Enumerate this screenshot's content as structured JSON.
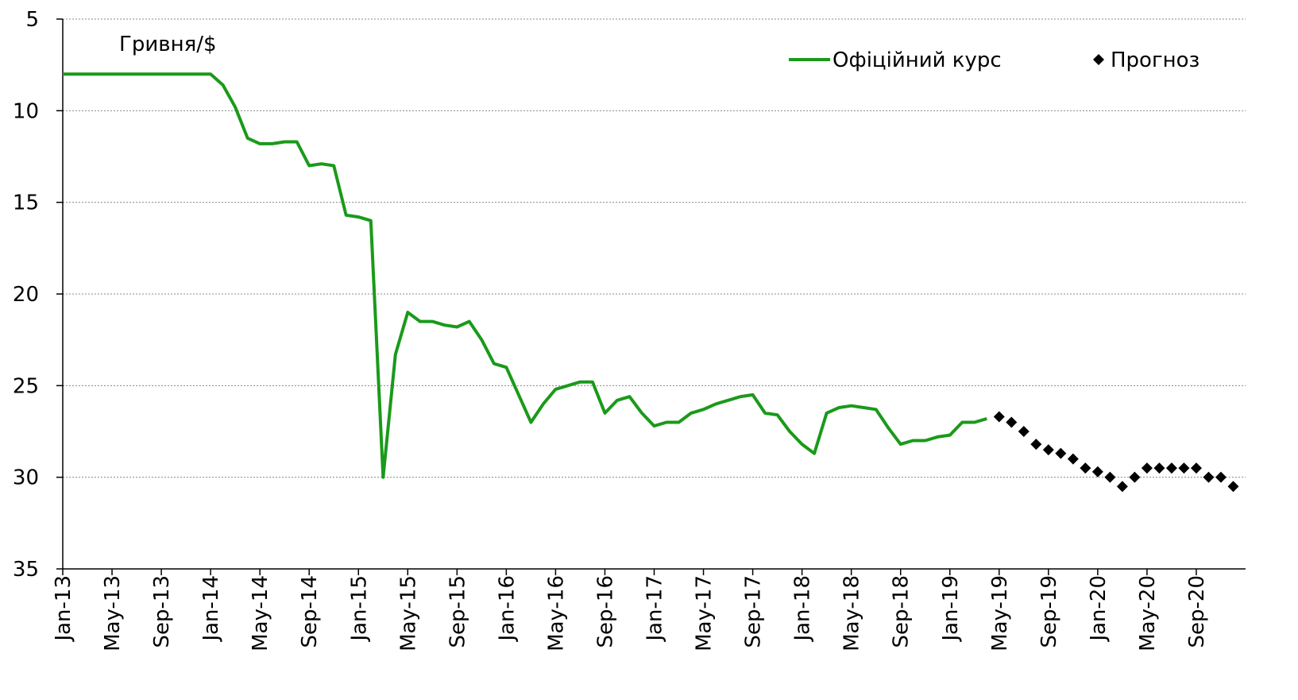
{
  "chart_data": {
    "type": "line",
    "y_axis_label": "Гривня/$",
    "categories": [
      "Jan-13",
      null,
      null,
      null,
      "May-13",
      null,
      null,
      null,
      "Sep-13",
      null,
      null,
      null,
      "Jan-14",
      null,
      null,
      null,
      "May-14",
      null,
      null,
      null,
      "Sep-14",
      null,
      null,
      null,
      "Jan-15",
      null,
      null,
      null,
      "May-15",
      null,
      null,
      null,
      "Sep-15",
      null,
      null,
      null,
      "Jan-16",
      null,
      null,
      null,
      "May-16",
      null,
      null,
      null,
      "Sep-16",
      null,
      null,
      null,
      "Jan-17",
      null,
      null,
      null,
      "May-17",
      null,
      null,
      null,
      "Sep-17",
      null,
      null,
      null,
      "Jan-18",
      null,
      null,
      null,
      "May-18",
      null,
      null,
      null,
      "Sep-18",
      null,
      null,
      null,
      "Jan-19",
      null,
      null,
      null,
      "May-19",
      null,
      null,
      null,
      "Sep-19",
      null,
      null,
      null,
      "Jan-20",
      null,
      null,
      null,
      "May-20",
      null,
      null,
      null,
      "Sep-20",
      null,
      null,
      null
    ],
    "series": [
      {
        "name": "Офіційний курс",
        "color": "#1a9a1a",
        "marker": "line",
        "values": [
          8.0,
          8.0,
          8.0,
          8.0,
          8.0,
          8.0,
          8.0,
          8.0,
          8.0,
          8.0,
          8.0,
          8.0,
          8.0,
          8.6,
          9.8,
          11.5,
          11.8,
          11.8,
          11.7,
          11.7,
          13.0,
          12.9,
          13.0,
          15.7,
          15.8,
          16.0,
          30.0,
          23.3,
          21.0,
          21.5,
          21.5,
          21.7,
          21.8,
          21.5,
          22.5,
          23.8,
          24.0,
          25.5,
          27.0,
          26.0,
          25.2,
          25.0,
          24.8,
          24.8,
          26.5,
          25.8,
          25.6,
          26.5,
          27.2,
          27.0,
          27.0,
          26.5,
          26.3,
          26.0,
          25.8,
          25.6,
          25.5,
          26.5,
          26.6,
          27.5,
          28.2,
          28.7,
          26.5,
          26.2,
          26.1,
          26.2,
          26.3,
          27.3,
          28.2,
          28.0,
          28.0,
          27.8,
          27.7,
          27.0,
          27.0,
          26.8,
          null,
          null,
          null,
          null,
          null,
          null,
          null,
          null,
          null,
          null,
          null,
          null,
          null,
          null,
          null,
          null,
          null,
          null,
          null,
          null
        ]
      },
      {
        "name": "Прогноз",
        "color": "#000000",
        "marker": "diamond",
        "values": [
          null,
          null,
          null,
          null,
          null,
          null,
          null,
          null,
          null,
          null,
          null,
          null,
          null,
          null,
          null,
          null,
          null,
          null,
          null,
          null,
          null,
          null,
          null,
          null,
          null,
          null,
          null,
          null,
          null,
          null,
          null,
          null,
          null,
          null,
          null,
          null,
          null,
          null,
          null,
          null,
          null,
          null,
          null,
          null,
          null,
          null,
          null,
          null,
          null,
          null,
          null,
          null,
          null,
          null,
          null,
          null,
          null,
          null,
          null,
          null,
          null,
          null,
          null,
          null,
          null,
          null,
          null,
          null,
          null,
          null,
          null,
          null,
          null,
          null,
          null,
          null,
          26.7,
          27.0,
          27.5,
          28.2,
          28.5,
          28.7,
          29.0,
          29.5,
          29.7,
          30.0,
          30.5,
          30.0,
          29.5,
          29.5,
          29.5,
          29.5,
          29.5,
          30.0,
          30.0,
          30.5
        ]
      }
    ],
    "ylim": [
      5,
      35
    ],
    "y_inverted": true,
    "yticks": [
      5,
      10,
      15,
      20,
      25,
      30,
      35
    ],
    "grid": true,
    "legend": "top-right"
  }
}
